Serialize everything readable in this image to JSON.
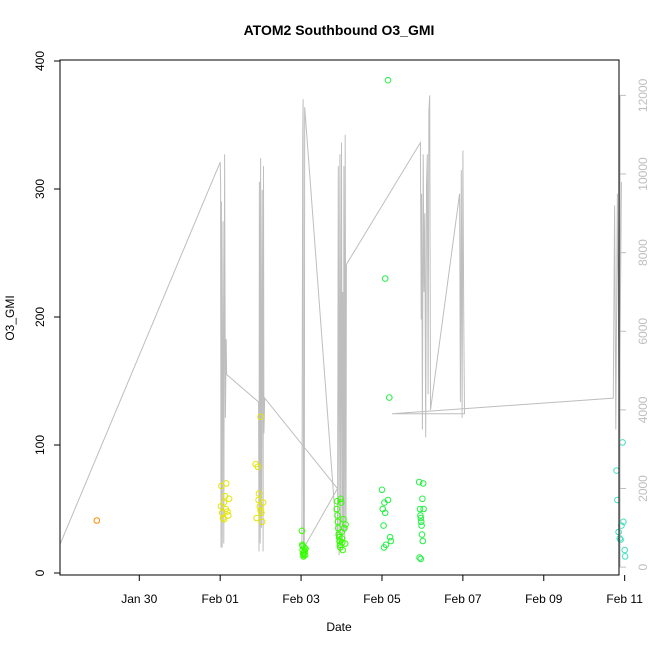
{
  "chart_data": {
    "type": "scatter",
    "title": "ATOM2 Southbound O3_GMI",
    "xlabel": "Date",
    "ylabel": "O3_GMI",
    "x_unit": "days after Jan 29 (00:00)",
    "xlim": [
      -0.96,
      12.86
    ],
    "ylim": [
      0,
      400
    ],
    "y2lim": [
      -200,
      12900
    ],
    "x_ticks": [
      {
        "x": 1,
        "label": "Jan 30"
      },
      {
        "x": 3,
        "label": "Feb 01"
      },
      {
        "x": 5,
        "label": "Feb 03"
      },
      {
        "x": 7,
        "label": "Feb 05"
      },
      {
        "x": 9,
        "label": "Feb 07"
      },
      {
        "x": 11,
        "label": "Feb 09"
      },
      {
        "x": 13,
        "label": "Feb 11"
      }
    ],
    "y_ticks": [
      0,
      100,
      200,
      300,
      400
    ],
    "y2_ticks": [
      0,
      2000,
      4000,
      6000,
      8000,
      10000,
      12000
    ],
    "grid": false,
    "colors": {
      "altitude_line": "#bebebe",
      "right_axis": "#bebebe",
      "axis": "#000000"
    },
    "series": [
      {
        "color": "#ff8c00",
        "points": [
          [
            -0.05,
            41
          ]
        ]
      },
      {
        "color": "#e5e500",
        "points": [
          [
            3.02,
            52
          ],
          [
            3.05,
            47
          ],
          [
            3.07,
            43
          ],
          [
            3.09,
            55
          ],
          [
            3.12,
            60
          ],
          [
            3.15,
            70
          ],
          [
            3.18,
            48
          ],
          [
            3.2,
            45
          ],
          [
            3.03,
            68
          ],
          [
            3.1,
            42
          ],
          [
            3.14,
            50
          ],
          [
            3.22,
            58
          ],
          [
            3.88,
            85
          ],
          [
            3.93,
            83
          ],
          [
            3.95,
            57
          ],
          [
            3.98,
            52
          ],
          [
            4.0,
            49
          ],
          [
            4.02,
            47
          ],
          [
            4.04,
            40
          ],
          [
            3.9,
            43
          ],
          [
            3.96,
            62
          ],
          [
            4.06,
            55
          ],
          [
            4.0,
            122
          ]
        ]
      },
      {
        "color": "#33ff00",
        "points": [
          [
            5.02,
            33
          ],
          [
            5.03,
            22
          ],
          [
            5.04,
            18
          ],
          [
            5.05,
            15
          ],
          [
            5.06,
            14
          ],
          [
            5.07,
            16
          ],
          [
            5.08,
            20
          ],
          [
            5.09,
            17
          ],
          [
            5.1,
            14
          ],
          [
            5.11,
            19
          ],
          [
            5.04,
            21
          ],
          [
            5.06,
            13
          ],
          [
            5.88,
            50
          ],
          [
            5.9,
            45
          ],
          [
            5.91,
            40
          ],
          [
            5.92,
            35
          ],
          [
            5.93,
            30
          ],
          [
            5.94,
            28
          ],
          [
            5.95,
            25
          ],
          [
            5.96,
            22
          ],
          [
            5.97,
            20
          ],
          [
            5.98,
            58
          ],
          [
            5.99,
            55
          ],
          [
            6.0,
            32
          ],
          [
            6.01,
            27
          ],
          [
            6.02,
            24
          ],
          [
            6.03,
            18
          ],
          [
            6.05,
            42
          ],
          [
            6.07,
            35
          ],
          [
            6.09,
            23
          ],
          [
            5.89,
            56
          ],
          [
            6.1,
            38
          ]
        ]
      },
      {
        "color": "#22f044",
        "points": [
          [
            7.0,
            65
          ],
          [
            7.02,
            50
          ],
          [
            7.04,
            37
          ],
          [
            7.06,
            55
          ],
          [
            7.08,
            47
          ],
          [
            7.05,
            20
          ],
          [
            7.1,
            22
          ],
          [
            7.15,
            57
          ],
          [
            7.2,
            28
          ],
          [
            7.22,
            25
          ],
          [
            7.08,
            230
          ],
          [
            7.15,
            385
          ],
          [
            7.18,
            137
          ],
          [
            7.92,
            71
          ],
          [
            7.94,
            50
          ],
          [
            7.95,
            45
          ],
          [
            7.96,
            43
          ],
          [
            7.97,
            40
          ],
          [
            7.98,
            37
          ],
          [
            7.99,
            30
          ],
          [
            8.0,
            58
          ],
          [
            8.01,
            25
          ],
          [
            7.93,
            12
          ],
          [
            7.96,
            11
          ],
          [
            8.02,
            70
          ],
          [
            8.03,
            50
          ]
        ]
      },
      {
        "color": "#40e0c0",
        "points": [
          [
            12.8,
            80
          ],
          [
            12.82,
            57
          ],
          [
            12.85,
            32
          ],
          [
            12.88,
            27
          ],
          [
            12.9,
            26
          ],
          [
            12.92,
            37
          ],
          [
            12.95,
            102
          ],
          [
            12.97,
            40
          ],
          [
            13.0,
            18
          ],
          [
            13.01,
            13
          ]
        ]
      }
    ],
    "altitude_line": [
      [
        -0.95,
        600
      ],
      [
        3.0,
        10300
      ],
      [
        3.01,
        9800
      ],
      [
        3.02,
        500
      ],
      [
        3.03,
        9300
      ],
      [
        3.05,
        500
      ],
      [
        3.07,
        8800
      ],
      [
        3.09,
        600
      ],
      [
        3.11,
        10500
      ],
      [
        3.13,
        3800
      ],
      [
        3.15,
        5800
      ],
      [
        3.16,
        4900
      ],
      [
        3.95,
        4200
      ],
      [
        3.96,
        400
      ],
      [
        3.97,
        9800
      ],
      [
        3.99,
        600
      ],
      [
        4.0,
        10400
      ],
      [
        4.02,
        1000
      ],
      [
        4.04,
        9600
      ],
      [
        4.06,
        400
      ],
      [
        4.07,
        10200
      ],
      [
        4.08,
        3400
      ],
      [
        4.1,
        4300
      ],
      [
        5.9,
        2000
      ],
      [
        5.02,
        400
      ],
      [
        5.04,
        10800
      ],
      [
        5.05,
        11900
      ],
      [
        5.06,
        350
      ],
      [
        5.08,
        700
      ],
      [
        5.09,
        11700
      ],
      [
        5.9,
        500
      ],
      [
        5.92,
        10200
      ],
      [
        5.94,
        300
      ],
      [
        5.96,
        10500
      ],
      [
        5.98,
        400
      ],
      [
        6.0,
        10800
      ],
      [
        6.02,
        500
      ],
      [
        6.03,
        7000
      ],
      [
        6.05,
        900
      ],
      [
        6.06,
        10200
      ],
      [
        6.08,
        700
      ],
      [
        6.09,
        11000
      ],
      [
        6.11,
        900
      ],
      [
        6.12,
        7700
      ],
      [
        7.95,
        10800
      ],
      [
        7.97,
        6300
      ],
      [
        7.98,
        9500
      ],
      [
        8.0,
        3500
      ],
      [
        8.02,
        10500
      ],
      [
        8.04,
        7000
      ],
      [
        8.06,
        9000
      ],
      [
        8.08,
        3300
      ],
      [
        8.1,
        9700
      ],
      [
        8.12,
        10500
      ],
      [
        8.14,
        4400
      ],
      [
        8.16,
        11600
      ],
      [
        8.18,
        12000
      ],
      [
        8.2,
        4000
      ],
      [
        8.92,
        9500
      ],
      [
        8.94,
        4200
      ],
      [
        8.96,
        10100
      ],
      [
        8.98,
        3800
      ],
      [
        9.0,
        10600
      ],
      [
        9.02,
        6500
      ],
      [
        9.04,
        3900
      ],
      [
        7.25,
        3900
      ],
      [
        12.72,
        4300
      ],
      [
        12.75,
        9200
      ],
      [
        12.78,
        3500
      ],
      [
        12.82,
        9500
      ],
      [
        12.87,
        3500
      ],
      [
        12.92,
        9800
      ]
    ]
  }
}
